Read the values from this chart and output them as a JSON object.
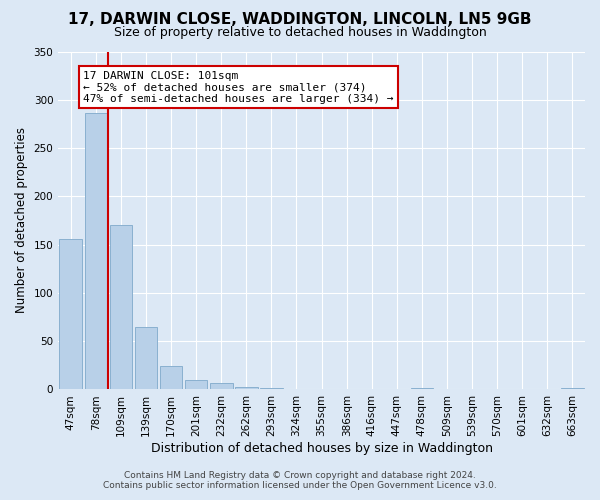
{
  "title": "17, DARWIN CLOSE, WADDINGTON, LINCOLN, LN5 9GB",
  "subtitle": "Size of property relative to detached houses in Waddington",
  "xlabel": "Distribution of detached houses by size in Waddington",
  "ylabel": "Number of detached properties",
  "bin_labels": [
    "47sqm",
    "78sqm",
    "109sqm",
    "139sqm",
    "170sqm",
    "201sqm",
    "232sqm",
    "262sqm",
    "293sqm",
    "324sqm",
    "355sqm",
    "386sqm",
    "416sqm",
    "447sqm",
    "478sqm",
    "509sqm",
    "539sqm",
    "570sqm",
    "601sqm",
    "632sqm",
    "663sqm"
  ],
  "bar_heights": [
    156,
    286,
    170,
    65,
    24,
    10,
    7,
    3,
    1,
    0,
    0,
    0,
    0,
    0,
    1,
    0,
    0,
    0,
    0,
    0,
    2
  ],
  "bar_color": "#b8d0e8",
  "bar_edge_color": "#8ab0d0",
  "vline_color": "#cc0000",
  "vline_x_index": 2,
  "ylim": [
    0,
    350
  ],
  "yticks": [
    0,
    50,
    100,
    150,
    200,
    250,
    300,
    350
  ],
  "annotation_title": "17 DARWIN CLOSE: 101sqm",
  "annotation_line1": "← 52% of detached houses are smaller (374)",
  "annotation_line2": "47% of semi-detached houses are larger (334) →",
  "annotation_box_color": "#ffffff",
  "annotation_border_color": "#cc0000",
  "footer_line1": "Contains HM Land Registry data © Crown copyright and database right 2024.",
  "footer_line2": "Contains public sector information licensed under the Open Government Licence v3.0.",
  "background_color": "#dce8f5",
  "plot_background": "#dce8f5",
  "grid_color": "#ffffff",
  "title_fontsize": 11,
  "subtitle_fontsize": 9,
  "ylabel_fontsize": 8.5,
  "xlabel_fontsize": 9,
  "tick_fontsize": 7.5,
  "footer_fontsize": 6.5,
  "annotation_fontsize": 8
}
